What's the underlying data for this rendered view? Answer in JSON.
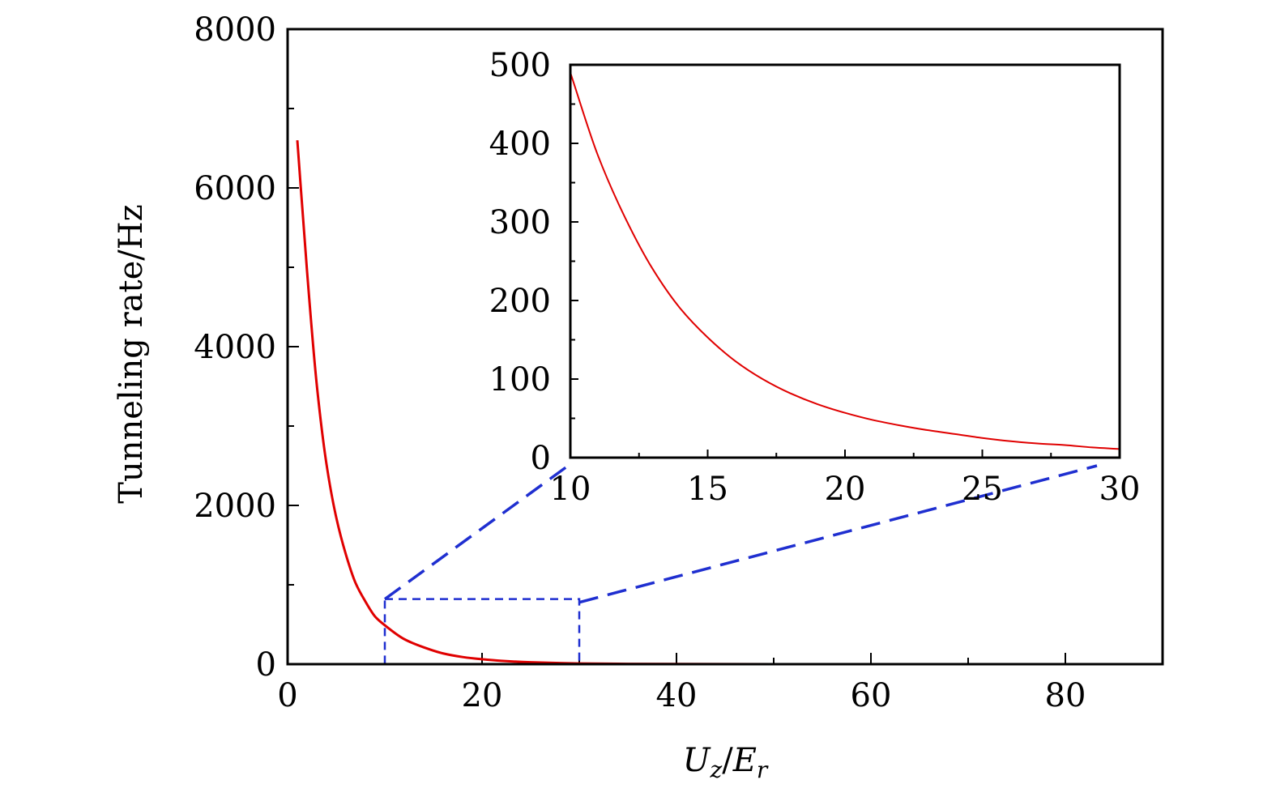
{
  "chart_data": [
    {
      "type": "line",
      "role": "main",
      "title": "",
      "xlabel": {
        "var": "U",
        "var_sub": "z",
        "sep": "/",
        "var2": "E",
        "var2_sub": "r"
      },
      "ylabel": "Tunneling rate/Hz",
      "xlim": [
        0,
        90
      ],
      "ylim": [
        0,
        8000
      ],
      "xticks": [
        0,
        20,
        40,
        60,
        80
      ],
      "yticks": [
        0,
        2000,
        4000,
        6000,
        8000
      ],
      "xtick_labels": [
        "0",
        "20",
        "40",
        "60",
        "80"
      ],
      "ytick_labels": [
        "0",
        "2000",
        "4000",
        "6000",
        "8000"
      ],
      "x_minor_step": 10,
      "y_minor_step": 1000,
      "series": [
        {
          "color": "#e00000",
          "x": [
            1,
            2,
            3,
            4,
            5,
            6,
            7,
            8,
            9,
            10,
            12,
            14,
            16,
            18,
            20,
            22,
            25,
            28,
            30,
            35,
            40,
            50,
            60,
            70,
            80,
            90
          ],
          "y": [
            6600,
            4950,
            3520,
            2520,
            1850,
            1380,
            1020,
            790,
            600,
            490,
            315,
            212,
            135,
            90,
            62,
            42,
            24,
            14,
            9,
            4,
            2,
            0.5,
            0.1,
            0,
            0,
            0
          ]
        }
      ],
      "zoom_region": {
        "x": [
          10,
          30
        ],
        "y": [
          0,
          820
        ]
      },
      "grid": false
    },
    {
      "type": "line",
      "role": "inset",
      "title": "",
      "xlim": [
        10,
        30
      ],
      "ylim": [
        0,
        500
      ],
      "xticks": [
        10,
        15,
        20,
        25,
        30
      ],
      "yticks": [
        0,
        100,
        200,
        300,
        400,
        500
      ],
      "xtick_labels": [
        "10",
        "15",
        "20",
        "25",
        "30"
      ],
      "ytick_labels": [
        "0",
        "100",
        "200",
        "300",
        "400",
        "500"
      ],
      "x_minor_step": 2.5,
      "y_minor_step": 50,
      "series": [
        {
          "color": "#e00000",
          "x": [
            10,
            11,
            12,
            13,
            14,
            15,
            16,
            17,
            18,
            19,
            20,
            21,
            22,
            23,
            24,
            25,
            26,
            27,
            28,
            29,
            30
          ],
          "y": [
            490,
            385,
            305,
            240,
            190,
            153,
            123,
            100,
            82,
            68,
            57,
            48,
            41,
            35,
            30,
            25,
            21,
            18,
            16,
            13,
            11
          ]
        }
      ],
      "grid": false
    }
  ]
}
